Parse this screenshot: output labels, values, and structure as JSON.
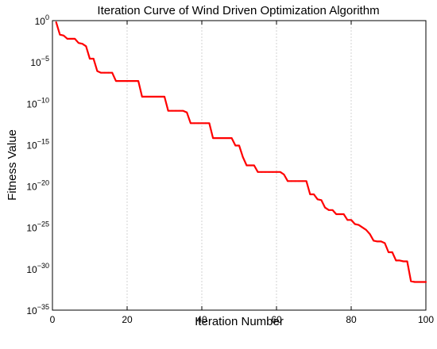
{
  "chart_data": {
    "type": "line",
    "title": "Iteration Curve of Wind Driven Optimization Algorithm",
    "xlabel": "Iteration Number",
    "ylabel": "Fitness Value",
    "xlim": [
      0,
      100
    ],
    "ylim_log10": [
      -35,
      0
    ],
    "y_scale": "log",
    "grid": true,
    "x_ticks": [
      {
        "value": 0,
        "label": "0"
      },
      {
        "value": 20,
        "label": "20"
      },
      {
        "value": 40,
        "label": "40"
      },
      {
        "value": 60,
        "label": "60"
      },
      {
        "value": 80,
        "label": "80"
      },
      {
        "value": 100,
        "label": "100"
      }
    ],
    "y_ticks": [
      {
        "exp": 0,
        "base": "10",
        "sup": "0"
      },
      {
        "exp": -5,
        "base": "10",
        "sup": "−5"
      },
      {
        "exp": -10,
        "base": "10",
        "sup": "−10"
      },
      {
        "exp": -15,
        "base": "10",
        "sup": "−15"
      },
      {
        "exp": -20,
        "base": "10",
        "sup": "−20"
      },
      {
        "exp": -25,
        "base": "10",
        "sup": "−25"
      },
      {
        "exp": -30,
        "base": "10",
        "sup": "−30"
      },
      {
        "exp": -35,
        "base": "10",
        "sup": "−35"
      }
    ],
    "series": [
      {
        "color": "#ff0000",
        "x": [
          1,
          2,
          3,
          4,
          5,
          6,
          7,
          8,
          9,
          10,
          11,
          12,
          13,
          14,
          15,
          16,
          17,
          18,
          19,
          20,
          21,
          22,
          23,
          24,
          25,
          26,
          27,
          28,
          29,
          30,
          31,
          32,
          33,
          34,
          35,
          36,
          37,
          38,
          39,
          40,
          41,
          42,
          43,
          44,
          45,
          46,
          47,
          48,
          49,
          50,
          51,
          52,
          53,
          54,
          55,
          56,
          57,
          58,
          59,
          60,
          61,
          62,
          63,
          64,
          65,
          66,
          67,
          68,
          69,
          70,
          71,
          72,
          73,
          74,
          75,
          76,
          77,
          78,
          79,
          80,
          81,
          82,
          83,
          84,
          85,
          86,
          87,
          88,
          89,
          90,
          91,
          92,
          93,
          94,
          95,
          96,
          97,
          98,
          99,
          100
        ],
        "y_log10": [
          -0.2,
          -1.7,
          -1.8,
          -2.2,
          -2.2,
          -2.2,
          -2.7,
          -2.8,
          -3.1,
          -4.6,
          -4.6,
          -6.1,
          -6.3,
          -6.3,
          -6.3,
          -6.3,
          -7.3,
          -7.3,
          -7.3,
          -7.3,
          -7.3,
          -7.3,
          -7.3,
          -9.2,
          -9.2,
          -9.2,
          -9.2,
          -9.2,
          -9.2,
          -9.2,
          -10.9,
          -10.9,
          -10.9,
          -10.9,
          -10.9,
          -11.1,
          -12.4,
          -12.4,
          -12.4,
          -12.4,
          -12.4,
          -12.4,
          -14.2,
          -14.2,
          -14.2,
          -14.2,
          -14.2,
          -14.2,
          -15.1,
          -15.1,
          -16.5,
          -17.5,
          -17.5,
          -17.5,
          -18.3,
          -18.3,
          -18.3,
          -18.3,
          -18.3,
          -18.3,
          -18.3,
          -18.6,
          -19.4,
          -19.4,
          -19.4,
          -19.4,
          -19.4,
          -19.4,
          -21.0,
          -21.0,
          -21.6,
          -21.7,
          -22.6,
          -22.9,
          -22.9,
          -23.4,
          -23.4,
          -23.4,
          -24.1,
          -24.1,
          -24.6,
          -24.7,
          -25.0,
          -25.3,
          -25.8,
          -26.6,
          -26.7,
          -26.7,
          -26.9,
          -28.0,
          -28.0,
          -29.0,
          -29.0,
          -29.1,
          -29.1,
          -31.5,
          -31.6,
          -31.6,
          -31.6,
          -31.6
        ]
      }
    ]
  }
}
